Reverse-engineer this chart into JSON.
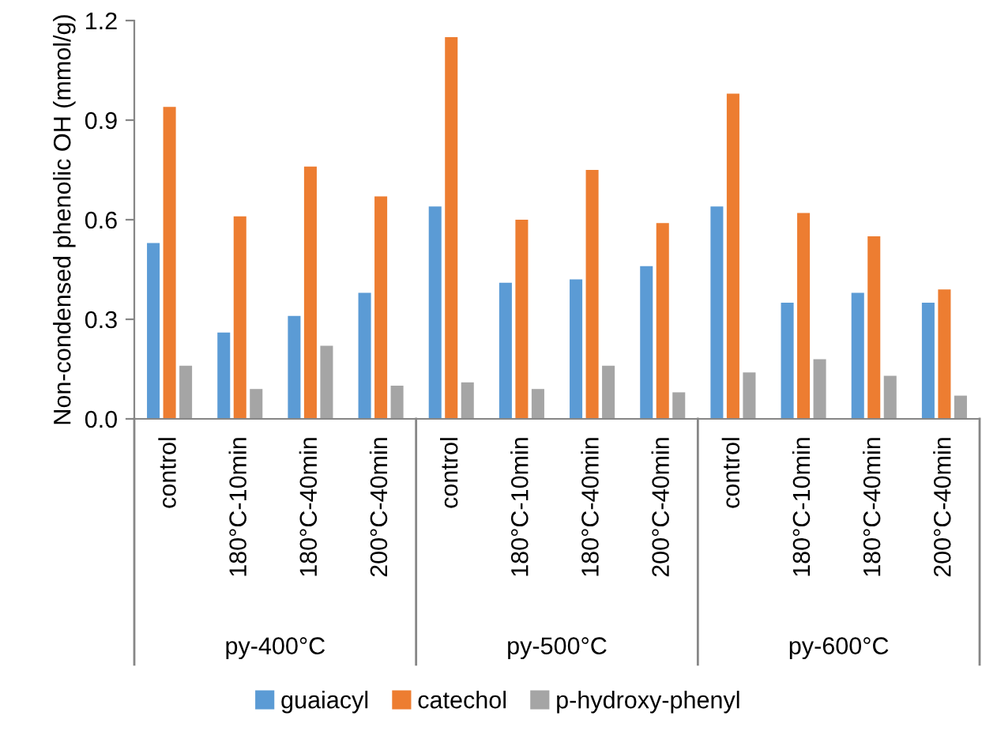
{
  "chart_data": {
    "type": "bar",
    "ylabel": "Non-condensed phenolic OH (mmol/g)",
    "categories": [
      "control",
      "180°C-10min",
      "180°C-40min",
      "200°C-40min",
      "control",
      "180°C-10min",
      "180°C-40min",
      "200°C-40min",
      "control",
      "180°C-10min",
      "180°C-40min",
      "200°C-40min"
    ],
    "series": [
      {
        "name": "guaiacyl",
        "color": "#5b9bd5",
        "values": [
          0.53,
          0.26,
          0.31,
          0.38,
          0.64,
          0.41,
          0.42,
          0.46,
          0.64,
          0.35,
          0.38,
          0.35
        ]
      },
      {
        "name": "catechol",
        "color": "#ed7d31",
        "values": [
          0.94,
          0.61,
          0.76,
          0.67,
          1.15,
          0.6,
          0.75,
          0.59,
          0.98,
          0.62,
          0.55,
          0.39
        ]
      },
      {
        "name": "p-hydroxy-phenyl",
        "color": "#a5a5a5",
        "values": [
          0.16,
          0.09,
          0.22,
          0.1,
          0.11,
          0.09,
          0.16,
          0.08,
          0.14,
          0.18,
          0.13,
          0.07
        ]
      }
    ],
    "annotations": [
      "py-400°C",
      "py-500°C",
      "py-600°C"
    ],
    "ylim": [
      0,
      1.2
    ],
    "yticks": [
      {
        "value": 0,
        "label": "0.0"
      },
      {
        "value": 0.3,
        "label": "0.3"
      },
      {
        "value": 0.6,
        "label": "0.6"
      },
      {
        "value": 0.9,
        "label": "0.9"
      },
      {
        "value": 1.2,
        "label": "1.2"
      }
    ],
    "legend": "bottom",
    "grid": false
  }
}
